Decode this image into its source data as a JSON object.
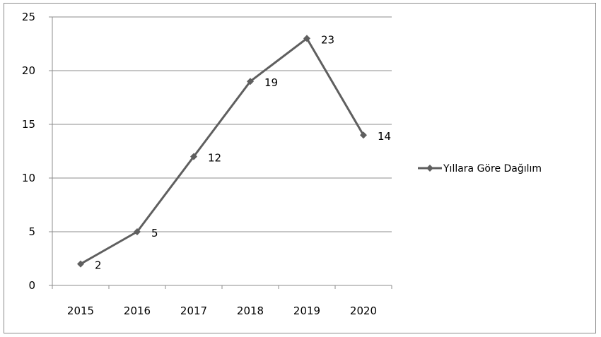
{
  "chart_data": {
    "type": "line",
    "title": "",
    "xlabel": "",
    "ylabel": "",
    "categories": [
      "2015",
      "2016",
      "2017",
      "2018",
      "2019",
      "2020"
    ],
    "series": [
      {
        "name": "Yıllara Göre Dağılım",
        "values": [
          2,
          5,
          12,
          19,
          23,
          14
        ],
        "color": "#5f5f5f",
        "marker": "diamond"
      }
    ],
    "ylim": [
      0,
      25
    ],
    "yticks": [
      0,
      5,
      10,
      15,
      20,
      25
    ],
    "grid": true,
    "data_labels": true,
    "legend_position": "right"
  }
}
